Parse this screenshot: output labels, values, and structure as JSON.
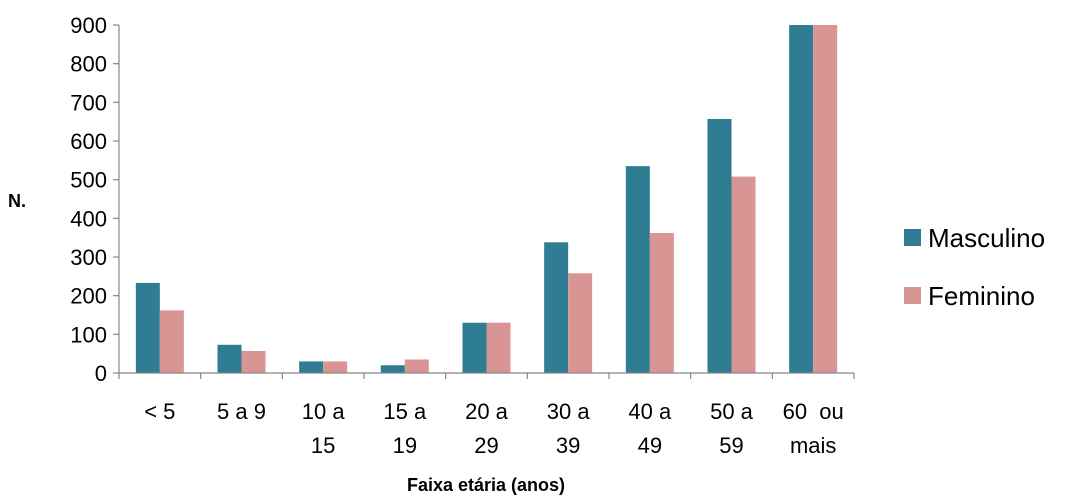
{
  "chart_data": {
    "type": "bar",
    "title": "",
    "xlabel": "Faixa etária (anos)",
    "ylabel": "N.",
    "ylim": [
      0,
      900
    ],
    "yticks": [
      0,
      100,
      200,
      300,
      400,
      500,
      600,
      700,
      800,
      900
    ],
    "grid": false,
    "legend_position": "right",
    "categories": [
      [
        "< 5"
      ],
      [
        "5 a 9"
      ],
      [
        "10 a",
        "15"
      ],
      [
        "15 a",
        "19"
      ],
      [
        "20 a",
        "29"
      ],
      [
        "30 a",
        "39"
      ],
      [
        "40 a",
        "49"
      ],
      [
        "50 a",
        "59"
      ],
      [
        "60  ou",
        "mais"
      ]
    ],
    "series": [
      {
        "name": "Masculino",
        "color": "#2e7d93",
        "values": [
          233,
          73,
          30,
          20,
          130,
          338,
          535,
          657,
          900
        ]
      },
      {
        "name": "Feminino",
        "color": "#d99594",
        "values": [
          162,
          57,
          30,
          35,
          130,
          258,
          362,
          508,
          900
        ]
      }
    ]
  }
}
